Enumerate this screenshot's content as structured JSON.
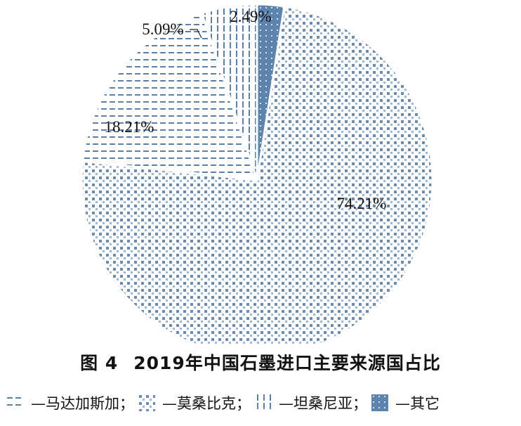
{
  "chart_data": {
    "type": "pie",
    "title": "2019年中国石墨进口主要来源国占比",
    "categories": [
      "—马达加斯加；",
      "—莫桑比克；",
      "—坦桑尼亚；",
      "—其它"
    ],
    "values": [
      18.21,
      74.21,
      5.09,
      2.49
    ],
    "value_labels": [
      "18.21%",
      "74.21%",
      "5.09%",
      "2.49%"
    ],
    "legend_placement": "bottom"
  },
  "caption": {
    "figure_number": "图 4",
    "title": "2019年中国石墨进口主要来源国占比"
  },
  "colors": {
    "pattern": "#5a7fa8",
    "solid": "#5c84ad"
  }
}
